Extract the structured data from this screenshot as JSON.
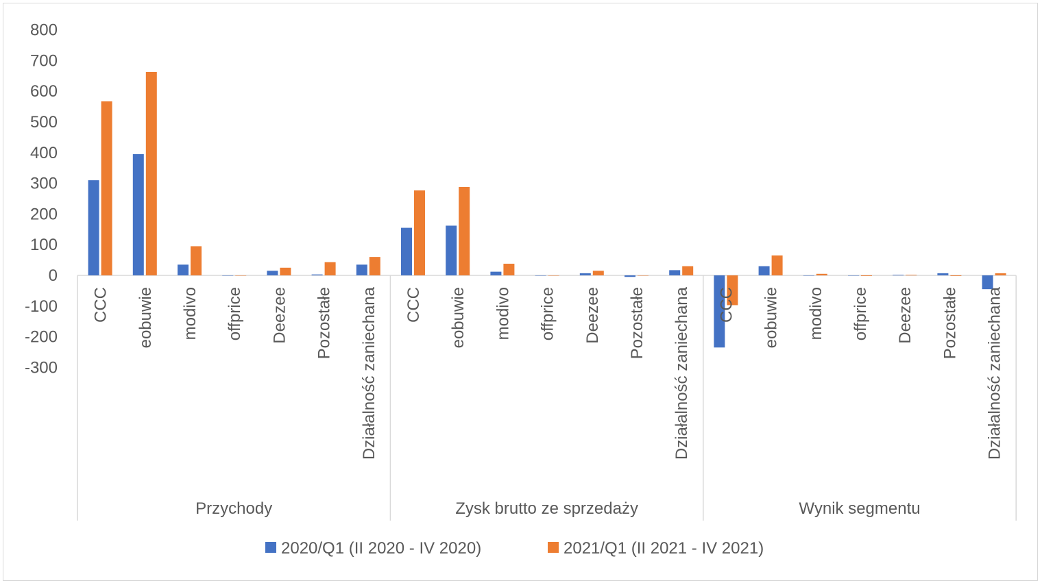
{
  "chart_data": {
    "type": "bar",
    "title": "",
    "xlabel": "",
    "ylabel": "",
    "ylim": [
      -300,
      800
    ],
    "yticks": [
      800,
      700,
      600,
      500,
      400,
      300,
      200,
      100,
      0,
      -100,
      -200,
      -300
    ],
    "grid": false,
    "legend_position": "bottom",
    "groups": [
      {
        "label": "Przychody",
        "categories": [
          "CCC",
          "eobuwie",
          "modivo",
          "offprice",
          "Deezee",
          "Pozostałe",
          "Działalność zaniechana"
        ]
      },
      {
        "label": "Zysk brutto ze sprzedaży",
        "categories": [
          "CCC",
          "eobuwie",
          "modivo",
          "offprice",
          "Deezee",
          "Pozostałe",
          "Działalność zaniechana"
        ]
      },
      {
        "label": "Wynik segmentu",
        "categories": [
          "CCC",
          "eobuwie",
          "modivo",
          "offprice",
          "Deezee",
          "Pozostałe",
          "Działalność zaniechana"
        ]
      }
    ],
    "series": [
      {
        "name": "2020/Q1 (II 2020 - IV 2020)",
        "color": "#4472c4",
        "values": [
          [
            310,
            395,
            35,
            0,
            15,
            3,
            35
          ],
          [
            155,
            162,
            12,
            0,
            7,
            -5,
            17
          ],
          [
            -235,
            30,
            0,
            0,
            2,
            7,
            -45
          ]
        ]
      },
      {
        "name": "2021/Q1 (II 2021 - IV 2021)",
        "color": "#ed7d31",
        "values": [
          [
            567,
            663,
            95,
            0,
            25,
            43,
            60
          ],
          [
            277,
            288,
            38,
            0,
            15,
            0,
            30
          ],
          [
            -97,
            65,
            5,
            -2,
            2,
            -2,
            7
          ]
        ]
      }
    ]
  },
  "axis_color": "#d9d9d9",
  "text_color": "#595959"
}
